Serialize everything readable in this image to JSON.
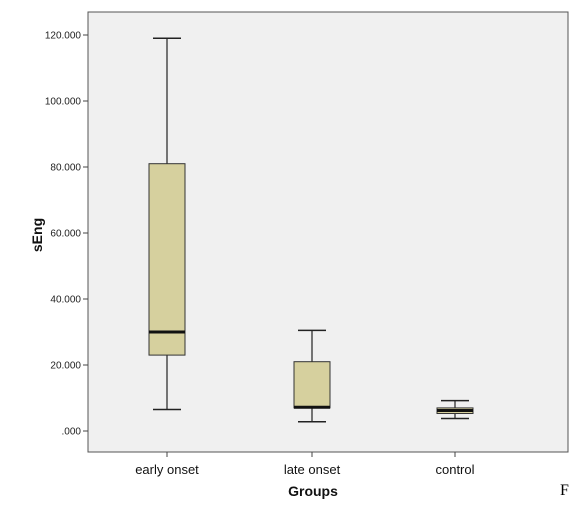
{
  "chart_data": {
    "type": "box",
    "title": "",
    "xlabel": "Groups",
    "ylabel": "sEng",
    "ylim": [
      0,
      120
    ],
    "yticks": [
      0,
      20,
      40,
      60,
      80,
      100,
      120
    ],
    "ytick_labels": [
      ".000",
      "20.000",
      "40.000",
      "60.000",
      "80.000",
      "100.000",
      "120.000"
    ],
    "categories": [
      "early onset",
      "late onset",
      "control"
    ],
    "boxes": [
      {
        "category": "early onset",
        "min": 6.5,
        "q1": 23.0,
        "median": 30.0,
        "q3": 81.0,
        "max": 119.0
      },
      {
        "category": "late onset",
        "min": 2.8,
        "q1": 7.0,
        "median": 7.2,
        "q3": 21.0,
        "max": 30.5
      },
      {
        "category": "control",
        "min": 3.8,
        "q1": 5.3,
        "median": 6.2,
        "q3": 7.0,
        "max": 9.2
      }
    ],
    "box_color": "#d6d09e",
    "plot_background": "#f0f0f0",
    "grid": false
  },
  "figure_letter": "F"
}
